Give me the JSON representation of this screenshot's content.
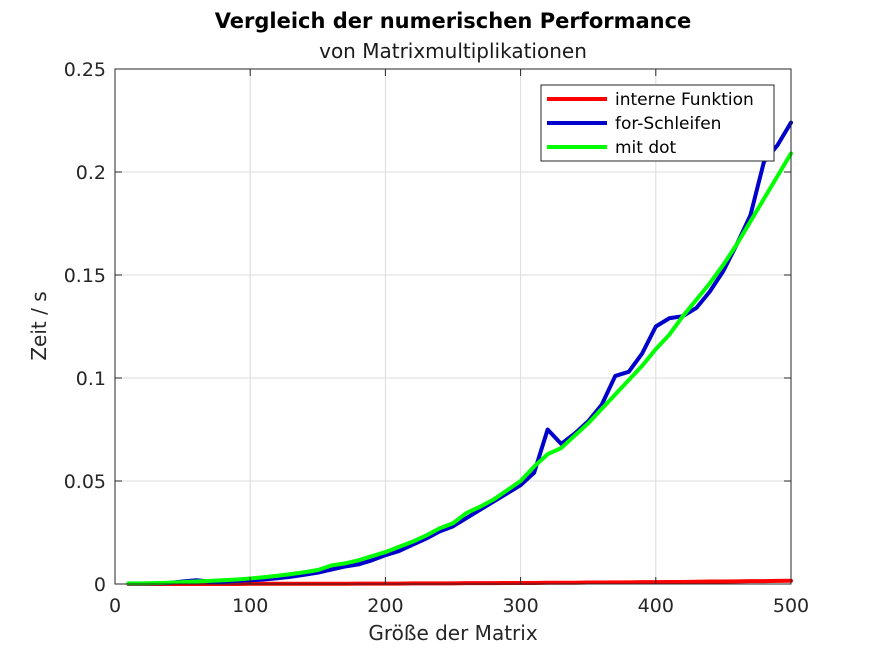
{
  "chart_data": {
    "type": "line",
    "title": "Vergleich der numerischen Performance",
    "subtitle": "von Matrixmultiplikationen",
    "xlabel": "Größe der Matrix",
    "ylabel": "Zeit / s",
    "xlim": [
      0,
      500
    ],
    "ylim": [
      0,
      0.25
    ],
    "xticks": [
      0,
      100,
      200,
      300,
      400,
      500
    ],
    "yticks": [
      0,
      0.05,
      0.1,
      0.15,
      0.2,
      0.25
    ],
    "xtick_labels": [
      "0",
      "100",
      "200",
      "300",
      "400",
      "500"
    ],
    "ytick_labels": [
      "0",
      "0.05",
      "0.1",
      "0.15",
      "0.2",
      "0.25"
    ],
    "grid": true,
    "legend_position": "top-right",
    "x": [
      10,
      20,
      30,
      40,
      50,
      60,
      70,
      80,
      90,
      100,
      110,
      120,
      130,
      140,
      150,
      160,
      170,
      180,
      190,
      200,
      210,
      220,
      230,
      240,
      250,
      260,
      270,
      280,
      290,
      300,
      310,
      320,
      330,
      340,
      350,
      360,
      370,
      380,
      390,
      400,
      410,
      420,
      430,
      440,
      450,
      460,
      470,
      480,
      490,
      500
    ],
    "series": [
      {
        "name": "interne Funktion",
        "color": "#ff0000",
        "values": [
          0,
          0,
          0,
          0,
          0,
          0,
          0,
          0,
          0,
          0.0001,
          0.0001,
          0.0001,
          0.0001,
          0.0001,
          0.0001,
          0.0001,
          0.0001,
          0.0002,
          0.0002,
          0.0002,
          0.0002,
          0.0003,
          0.0003,
          0.0003,
          0.0003,
          0.0004,
          0.0004,
          0.0004,
          0.0005,
          0.0005,
          0.0005,
          0.0006,
          0.0006,
          0.0006,
          0.0007,
          0.0007,
          0.0008,
          0.0008,
          0.0009,
          0.0009,
          0.001,
          0.001,
          0.0011,
          0.0012,
          0.0012,
          0.0013,
          0.0014,
          0.0014,
          0.0015,
          0.0016
        ]
      },
      {
        "name": "for-Schleifen",
        "color": "#0000cc",
        "values": [
          0.0002,
          0.0002,
          0.0003,
          0.0005,
          0.0012,
          0.0018,
          0.0012,
          0.0012,
          0.0015,
          0.0018,
          0.0022,
          0.0028,
          0.0035,
          0.0045,
          0.0055,
          0.007,
          0.0085,
          0.0095,
          0.0115,
          0.014,
          0.016,
          0.019,
          0.022,
          0.0255,
          0.028,
          0.032,
          0.036,
          0.04,
          0.044,
          0.048,
          0.054,
          0.075,
          0.068,
          0.073,
          0.079,
          0.087,
          0.101,
          0.103,
          0.112,
          0.125,
          0.129,
          0.13,
          0.134,
          0.142,
          0.152,
          0.165,
          0.179,
          0.205,
          0.213,
          0.224
        ]
      },
      {
        "name": "mit dot",
        "color": "#00ff00",
        "values": [
          0.0003,
          0.0003,
          0.0004,
          0.0006,
          0.0009,
          0.0012,
          0.0015,
          0.0018,
          0.0022,
          0.0027,
          0.0033,
          0.004,
          0.0048,
          0.0057,
          0.0068,
          0.009,
          0.01,
          0.0115,
          0.0135,
          0.0155,
          0.018,
          0.0205,
          0.0235,
          0.027,
          0.0295,
          0.0345,
          0.0375,
          0.041,
          0.0455,
          0.05,
          0.057,
          0.063,
          0.066,
          0.072,
          0.078,
          0.085,
          0.092,
          0.099,
          0.106,
          0.114,
          0.121,
          0.13,
          0.138,
          0.146,
          0.155,
          0.165,
          0.176,
          0.187,
          0.198,
          0.209
        ]
      }
    ]
  }
}
